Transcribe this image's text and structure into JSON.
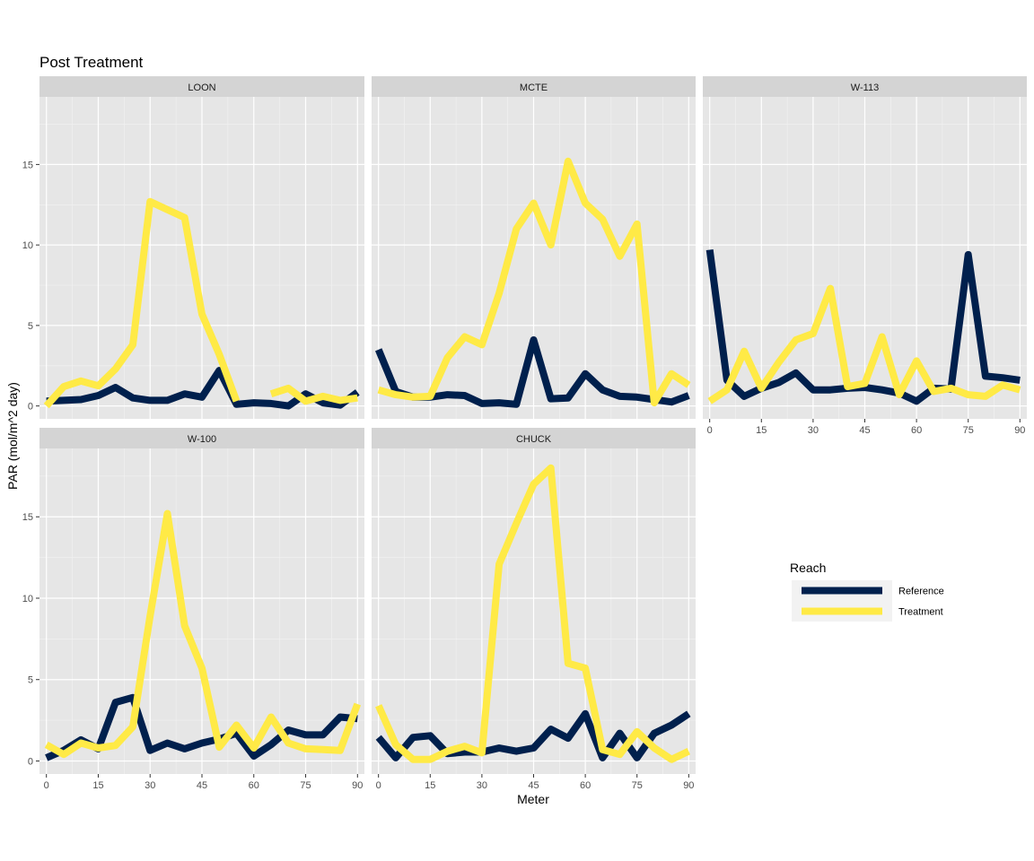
{
  "chart_data": {
    "type": "line",
    "title": "Post Treatment",
    "xlabel": "Meter",
    "ylabel": "PAR (mol/m^2 day)",
    "xlim": [
      -2,
      92
    ],
    "ylim": [
      -0.8,
      19.2
    ],
    "x_ticks": [
      0,
      15,
      30,
      45,
      60,
      75,
      90
    ],
    "x_tick_labels": [
      "0",
      "15",
      "30",
      "45",
      "60",
      "75",
      "90"
    ],
    "y_ticks": [
      0,
      5,
      10,
      15
    ],
    "y_tick_labels": [
      "0",
      "5",
      "10",
      "15"
    ],
    "grid": true,
    "facet_layout": "3 columns x 2 rows, shared axes",
    "legend": {
      "title": "Reach",
      "placement": "right",
      "entries": [
        {
          "name": "Reference",
          "color": "#00204d"
        },
        {
          "name": "Treatment",
          "color": "#ffea46"
        }
      ]
    },
    "panels": [
      {
        "name": "LOON",
        "series": [
          {
            "name": "Reference",
            "x": [
              0,
              5,
              10,
              15,
              20,
              25,
              30,
              35,
              40,
              45,
              50,
              55,
              60,
              65,
              70,
              75,
              80,
              85,
              90
            ],
            "values": [
              0.3,
              0.35,
              0.4,
              0.65,
              1.15,
              0.5,
              0.35,
              0.35,
              0.75,
              0.55,
              2.2,
              0.1,
              0.2,
              0.15,
              0.0,
              0.75,
              0.2,
              0.05,
              0.85
            ]
          },
          {
            "name": "Treatment",
            "x": [
              0,
              5,
              10,
              15,
              20,
              25,
              30,
              35,
              40,
              45,
              50,
              55,
              60,
              65,
              70,
              75,
              80,
              85,
              90
            ],
            "values": [
              0.0,
              1.2,
              1.55,
              1.25,
              2.3,
              3.8,
              12.7,
              12.2,
              11.7,
              5.7,
              3.2,
              0.3,
              null,
              0.75,
              1.1,
              0.3,
              0.6,
              0.35,
              0.5
            ]
          }
        ]
      },
      {
        "name": "MCTE",
        "series": [
          {
            "name": "Reference",
            "x": [
              0,
              5,
              10,
              15,
              20,
              25,
              30,
              35,
              40,
              45,
              50,
              55,
              60,
              65,
              70,
              75,
              80,
              85,
              90
            ],
            "values": [
              3.5,
              0.9,
              0.55,
              0.55,
              0.7,
              0.65,
              0.15,
              0.2,
              0.1,
              4.1,
              0.45,
              0.5,
              2.0,
              1.0,
              0.6,
              0.55,
              0.4,
              0.25,
              0.65
            ]
          },
          {
            "name": "Treatment",
            "x": [
              0,
              5,
              10,
              15,
              20,
              25,
              30,
              35,
              40,
              45,
              50,
              55,
              60,
              65,
              70,
              75,
              80,
              85,
              90
            ],
            "values": [
              1.0,
              0.7,
              0.55,
              0.6,
              3.0,
              4.3,
              3.8,
              7.0,
              11.0,
              12.6,
              10.0,
              15.2,
              12.6,
              11.6,
              9.3,
              11.3,
              0.2,
              2.0,
              1.3
            ]
          }
        ]
      },
      {
        "name": "W-113",
        "series": [
          {
            "name": "Reference",
            "x": [
              0,
              5,
              10,
              15,
              20,
              25,
              30,
              35,
              40,
              45,
              50,
              55,
              60,
              65,
              70,
              75,
              80,
              85,
              90
            ],
            "values": [
              9.7,
              1.6,
              0.6,
              1.1,
              1.45,
              2.05,
              1.0,
              1.0,
              1.1,
              1.15,
              1.0,
              0.8,
              0.3,
              1.1,
              1.05,
              9.4,
              1.85,
              1.75,
              1.6
            ]
          },
          {
            "name": "Treatment",
            "x": [
              0,
              5,
              10,
              15,
              20,
              25,
              30,
              35,
              40,
              45,
              50,
              55,
              60,
              65,
              70,
              75,
              80,
              85,
              90
            ],
            "values": [
              0.3,
              1.0,
              3.4,
              1.1,
              2.7,
              4.1,
              4.5,
              7.3,
              1.2,
              1.4,
              4.3,
              0.7,
              2.8,
              0.9,
              1.1,
              0.7,
              0.6,
              1.3,
              1.0
            ]
          }
        ]
      },
      {
        "name": "W-100",
        "series": [
          {
            "name": "Reference",
            "x": [
              0,
              5,
              10,
              15,
              20,
              25,
              30,
              35,
              40,
              45,
              50,
              55,
              60,
              65,
              70,
              75,
              80,
              85,
              90
            ],
            "values": [
              0.2,
              0.65,
              1.3,
              0.75,
              3.6,
              3.9,
              0.65,
              1.1,
              0.75,
              1.1,
              1.35,
              1.7,
              0.3,
              1.0,
              1.9,
              1.6,
              1.6,
              2.7,
              2.6
            ]
          },
          {
            "name": "Treatment",
            "x": [
              0,
              5,
              10,
              15,
              20,
              25,
              30,
              35,
              40,
              45,
              50,
              55,
              60,
              65,
              70,
              75,
              80,
              85,
              90
            ],
            "values": [
              1.0,
              0.4,
              1.1,
              0.8,
              0.95,
              2.1,
              8.9,
              15.2,
              8.3,
              5.7,
              0.85,
              2.2,
              0.8,
              2.7,
              1.1,
              0.75,
              0.7,
              0.65,
              3.5
            ]
          }
        ]
      },
      {
        "name": "CHUCK",
        "series": [
          {
            "name": "Reference",
            "x": [
              0,
              5,
              10,
              15,
              20,
              25,
              30,
              35,
              40,
              45,
              50,
              55,
              60,
              65,
              70,
              75,
              80,
              85,
              90
            ],
            "values": [
              1.45,
              0.2,
              1.45,
              1.55,
              0.45,
              0.55,
              0.55,
              0.8,
              0.6,
              0.8,
              1.95,
              1.4,
              2.9,
              0.2,
              1.7,
              0.2,
              1.7,
              2.2,
              2.9
            ]
          },
          {
            "name": "Treatment",
            "x": [
              0,
              5,
              10,
              15,
              20,
              25,
              30,
              35,
              40,
              45,
              50,
              55,
              60,
              65,
              70,
              75,
              80,
              85,
              90
            ],
            "values": [
              3.4,
              1.0,
              0.1,
              0.1,
              0.6,
              0.9,
              0.5,
              12.1,
              14.6,
              17.0,
              18.0,
              6.0,
              5.7,
              0.7,
              0.4,
              1.8,
              0.8,
              0.1,
              0.6
            ]
          }
        ]
      }
    ]
  }
}
